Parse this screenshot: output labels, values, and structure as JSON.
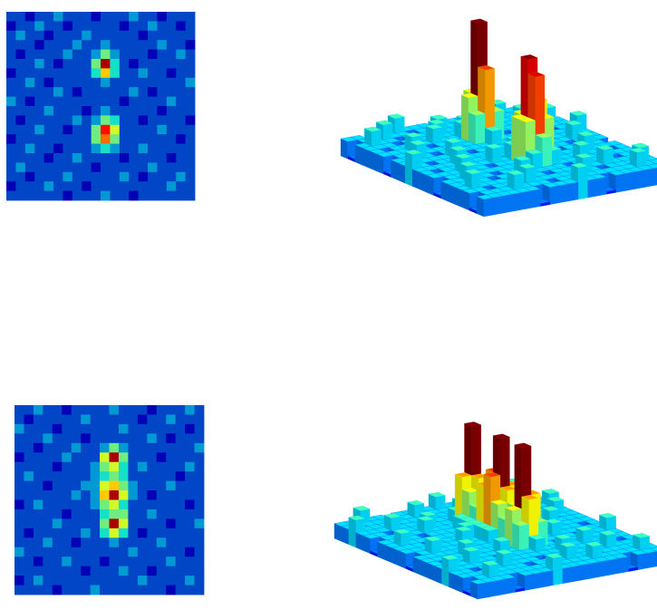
{
  "panels": [
    {
      "clim": [
        0,
        9
      ],
      "grid": [
        [
          1,
          1,
          0,
          1,
          1,
          2,
          1,
          1,
          1,
          0,
          1,
          1,
          1,
          2,
          1,
          1,
          0,
          1,
          1,
          1
        ],
        [
          0,
          1,
          1,
          2,
          1,
          1,
          0,
          1,
          1,
          1,
          1,
          1,
          0,
          1,
          1,
          2,
          1,
          1,
          0,
          1
        ],
        [
          1,
          2,
          1,
          1,
          0,
          1,
          1,
          1,
          2,
          1,
          1,
          1,
          1,
          1,
          0,
          1,
          1,
          1,
          1,
          1
        ],
        [
          1,
          1,
          1,
          0,
          1,
          1,
          1,
          2,
          1,
          1,
          2,
          1,
          1,
          1,
          1,
          1,
          2,
          1,
          1,
          0
        ],
        [
          1,
          0,
          1,
          1,
          1,
          1,
          2,
          1,
          1,
          2,
          4,
          2,
          1,
          1,
          1,
          0,
          1,
          1,
          2,
          1
        ],
        [
          1,
          1,
          1,
          2,
          1,
          0,
          1,
          1,
          1,
          4,
          9,
          3,
          1,
          0,
          1,
          1,
          1,
          1,
          1,
          1
        ],
        [
          0,
          1,
          1,
          1,
          1,
          1,
          1,
          1,
          1,
          3,
          6,
          3,
          1,
          1,
          2,
          1,
          1,
          0,
          1,
          1
        ],
        [
          1,
          1,
          2,
          1,
          0,
          1,
          1,
          1,
          1,
          1,
          2,
          1,
          1,
          1,
          1,
          1,
          1,
          1,
          1,
          2
        ],
        [
          1,
          1,
          1,
          1,
          1,
          2,
          1,
          0,
          1,
          1,
          1,
          1,
          1,
          2,
          1,
          0,
          1,
          1,
          1,
          1
        ],
        [
          2,
          1,
          0,
          1,
          1,
          1,
          1,
          1,
          1,
          1,
          1,
          1,
          0,
          1,
          1,
          1,
          1,
          2,
          1,
          1
        ],
        [
          1,
          1,
          1,
          1,
          2,
          1,
          1,
          1,
          0,
          1,
          2,
          1,
          1,
          1,
          1,
          1,
          0,
          1,
          1,
          1
        ],
        [
          1,
          0,
          1,
          1,
          1,
          1,
          1,
          2,
          1,
          2,
          4,
          3,
          1,
          1,
          0,
          1,
          1,
          1,
          1,
          0
        ],
        [
          1,
          1,
          1,
          2,
          1,
          1,
          0,
          1,
          1,
          4,
          8,
          5,
          1,
          1,
          1,
          1,
          2,
          1,
          1,
          1
        ],
        [
          0,
          1,
          1,
          1,
          1,
          1,
          1,
          1,
          1,
          4,
          7,
          4,
          1,
          1,
          1,
          1,
          1,
          1,
          0,
          1
        ],
        [
          1,
          1,
          2,
          1,
          1,
          0,
          1,
          1,
          1,
          2,
          3,
          2,
          1,
          1,
          2,
          1,
          1,
          1,
          1,
          1
        ],
        [
          1,
          1,
          1,
          1,
          0,
          1,
          1,
          2,
          1,
          1,
          1,
          1,
          0,
          1,
          1,
          1,
          1,
          0,
          1,
          1
        ],
        [
          1,
          2,
          1,
          1,
          1,
          1,
          1,
          1,
          1,
          0,
          1,
          1,
          1,
          1,
          1,
          2,
          1,
          1,
          1,
          1
        ],
        [
          1,
          1,
          0,
          1,
          1,
          1,
          2,
          1,
          1,
          1,
          1,
          1,
          2,
          1,
          0,
          1,
          1,
          1,
          2,
          1
        ],
        [
          0,
          1,
          1,
          1,
          2,
          1,
          1,
          1,
          0,
          1,
          1,
          1,
          1,
          1,
          1,
          1,
          1,
          2,
          1,
          1
        ],
        [
          1,
          1,
          1,
          1,
          1,
          1,
          0,
          1,
          1,
          1,
          2,
          1,
          1,
          0,
          1,
          1,
          1,
          1,
          1,
          1
        ]
      ]
    },
    {
      "clim": [
        0,
        9
      ],
      "grid": [
        [
          1,
          1,
          2,
          1,
          1,
          0,
          1,
          1,
          1,
          1,
          2,
          1,
          1,
          1,
          0,
          1,
          1,
          1,
          2,
          1
        ],
        [
          1,
          0,
          1,
          1,
          1,
          1,
          1,
          2,
          1,
          1,
          1,
          1,
          1,
          0,
          1,
          1,
          2,
          1,
          1,
          1
        ],
        [
          2,
          1,
          1,
          1,
          0,
          1,
          1,
          1,
          1,
          1,
          1,
          2,
          1,
          1,
          1,
          1,
          1,
          1,
          0,
          1
        ],
        [
          1,
          1,
          1,
          2,
          1,
          1,
          1,
          0,
          1,
          1,
          1,
          1,
          1,
          1,
          2,
          1,
          0,
          1,
          1,
          1
        ],
        [
          1,
          1,
          0,
          1,
          1,
          1,
          2,
          1,
          1,
          2,
          4,
          2,
          1,
          1,
          1,
          1,
          1,
          1,
          1,
          2
        ],
        [
          0,
          1,
          1,
          1,
          1,
          2,
          1,
          1,
          1,
          5,
          9,
          4,
          1,
          1,
          1,
          0,
          1,
          1,
          1,
          1
        ],
        [
          1,
          1,
          1,
          1,
          0,
          1,
          1,
          1,
          2,
          4,
          5,
          3,
          1,
          2,
          1,
          1,
          1,
          1,
          2,
          1
        ],
        [
          1,
          2,
          1,
          1,
          1,
          1,
          1,
          1,
          2,
          3,
          4,
          3,
          1,
          1,
          1,
          1,
          1,
          0,
          1,
          1
        ],
        [
          1,
          1,
          1,
          0,
          1,
          1,
          1,
          2,
          2,
          5,
          6,
          4,
          2,
          1,
          1,
          1,
          2,
          1,
          1,
          1
        ],
        [
          1,
          1,
          1,
          1,
          1,
          1,
          2,
          1,
          2,
          6,
          9,
          5,
          2,
          1,
          0,
          1,
          1,
          1,
          1,
          1
        ],
        [
          0,
          1,
          2,
          1,
          1,
          1,
          1,
          1,
          2,
          4,
          5,
          3,
          1,
          1,
          1,
          1,
          1,
          1,
          0,
          1
        ],
        [
          1,
          1,
          1,
          1,
          1,
          0,
          1,
          1,
          1,
          3,
          4,
          4,
          1,
          1,
          2,
          1,
          1,
          1,
          1,
          1
        ],
        [
          1,
          1,
          1,
          1,
          2,
          1,
          1,
          1,
          1,
          4,
          9,
          5,
          1,
          1,
          1,
          1,
          0,
          1,
          1,
          2
        ],
        [
          1,
          0,
          1,
          1,
          1,
          1,
          1,
          2,
          1,
          3,
          5,
          3,
          1,
          0,
          1,
          1,
          1,
          1,
          1,
          1
        ],
        [
          1,
          1,
          1,
          2,
          1,
          1,
          0,
          1,
          1,
          1,
          2,
          1,
          1,
          1,
          1,
          2,
          1,
          1,
          1,
          1
        ],
        [
          2,
          1,
          1,
          1,
          1,
          1,
          1,
          1,
          1,
          1,
          1,
          1,
          2,
          1,
          1,
          1,
          1,
          1,
          0,
          1
        ],
        [
          1,
          1,
          0,
          1,
          1,
          2,
          1,
          1,
          1,
          0,
          1,
          1,
          1,
          1,
          1,
          1,
          2,
          1,
          1,
          1
        ],
        [
          1,
          1,
          1,
          1,
          1,
          1,
          1,
          0,
          1,
          1,
          1,
          2,
          1,
          1,
          0,
          1,
          1,
          1,
          1,
          1
        ],
        [
          0,
          1,
          2,
          1,
          1,
          1,
          1,
          1,
          1,
          1,
          1,
          1,
          1,
          2,
          1,
          1,
          1,
          1,
          2,
          1
        ],
        [
          1,
          1,
          1,
          1,
          0,
          1,
          1,
          1,
          2,
          1,
          1,
          1,
          1,
          1,
          1,
          1,
          0,
          1,
          1,
          1
        ]
      ]
    }
  ]
}
